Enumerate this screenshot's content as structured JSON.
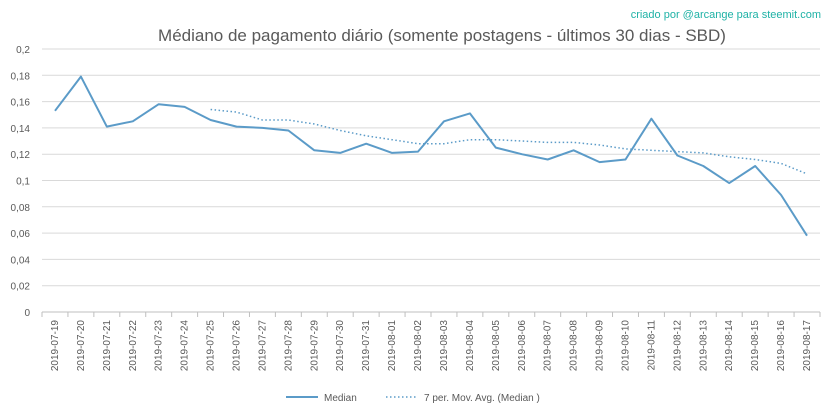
{
  "chart_data": {
    "type": "line",
    "title": "Médiano de pagamento diário (somente postagens - últimos 30 dias - SBD)",
    "credit": "criado por @arcange para steemit.com",
    "xlabel": "",
    "ylabel": "",
    "ylim": [
      0,
      0.2
    ],
    "yticks": [
      "0",
      "0,02",
      "0,04",
      "0,06",
      "0,08",
      "0,1",
      "0,12",
      "0,14",
      "0,16",
      "0,18",
      "0,2"
    ],
    "grid": true,
    "legend_position": "bottom",
    "categories": [
      "2019-07-19",
      "2019-07-20",
      "2019-07-21",
      "2019-07-22",
      "2019-07-23",
      "2019-07-24",
      "2019-07-25",
      "2019-07-26",
      "2019-07-27",
      "2019-07-28",
      "2019-07-29",
      "2019-07-30",
      "2019-07-31",
      "2019-08-01",
      "2019-08-02",
      "2019-08-03",
      "2019-08-04",
      "2019-08-05",
      "2019-08-06",
      "2019-08-07",
      "2019-08-08",
      "2019-08-09",
      "2019-08-10",
      "2019-08-11",
      "2019-08-12",
      "2019-08-13",
      "2019-08-14",
      "2019-08-15",
      "2019-08-16",
      "2019-08-17"
    ],
    "series": [
      {
        "name": "Median",
        "style": "solid",
        "color": "#5b9bc8",
        "values": [
          0.153,
          0.179,
          0.141,
          0.145,
          0.158,
          0.156,
          0.146,
          0.141,
          0.14,
          0.138,
          0.123,
          0.121,
          0.128,
          0.121,
          0.122,
          0.145,
          0.151,
          0.125,
          0.12,
          0.116,
          0.123,
          0.114,
          0.116,
          0.147,
          0.119,
          0.111,
          0.098,
          0.111,
          0.089,
          0.058
        ]
      },
      {
        "name": "7 per. Mov. Avg. (Median )",
        "style": "dotted",
        "color": "#5b9bc8",
        "values": [
          null,
          null,
          null,
          null,
          null,
          null,
          0.154,
          0.152,
          0.146,
          0.146,
          0.143,
          0.138,
          0.134,
          0.131,
          0.128,
          0.128,
          0.131,
          0.131,
          0.13,
          0.129,
          0.129,
          0.127,
          0.124,
          0.123,
          0.122,
          0.121,
          0.118,
          0.116,
          0.113,
          0.105
        ]
      }
    ]
  }
}
